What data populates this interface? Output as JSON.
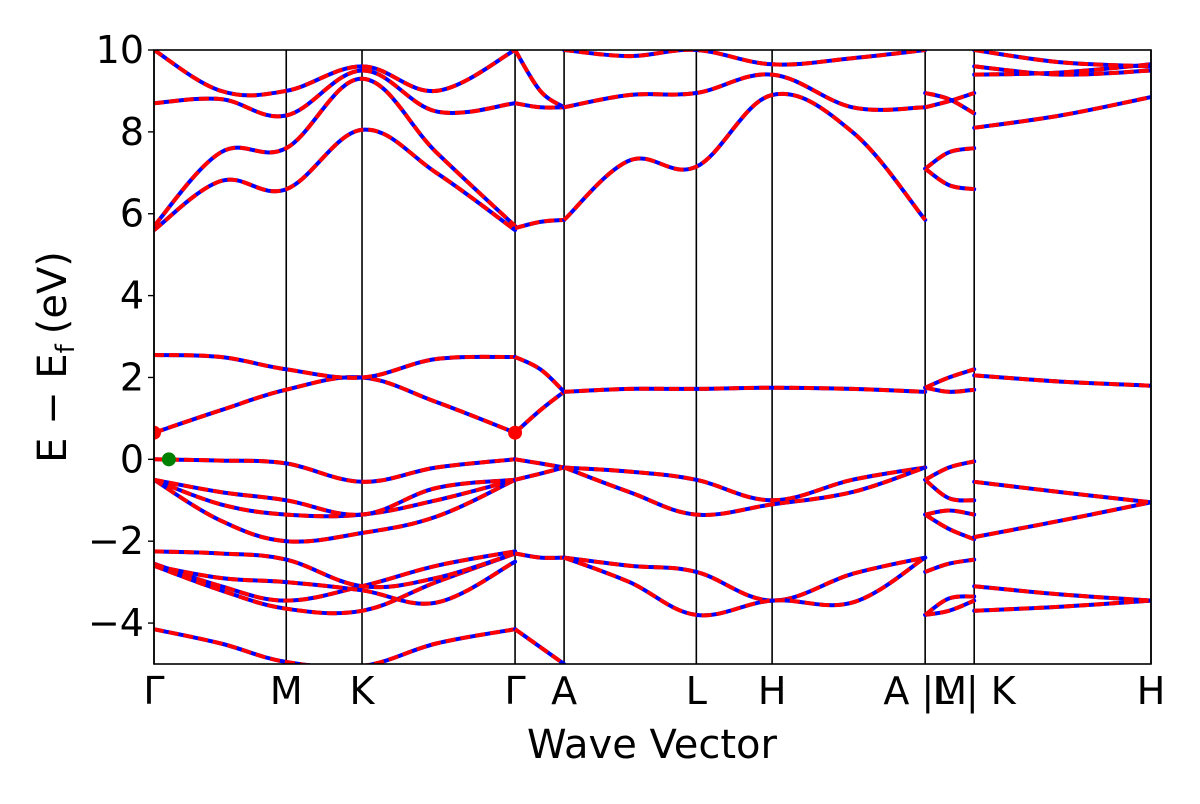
{
  "chart_data": {
    "type": "line",
    "title": "",
    "xlabel": "Wave Vector",
    "ylabel": "E − E",
    "ylabel_sub": "f",
    "ylabel_unit": "(eV)",
    "ylim": [
      -5,
      10
    ],
    "yticks": [
      -4,
      -2,
      0,
      2,
      4,
      6,
      8,
      10
    ],
    "ytick_labels": [
      "−4",
      "−2",
      "0",
      "2",
      "4",
      "6",
      "8",
      "10"
    ],
    "xlim": [
      0,
      6.71
    ],
    "kpoints": [
      {
        "label": "Γ",
        "x": 0.0
      },
      {
        "label": "M",
        "x": 0.89
      },
      {
        "label": "K",
        "x": 1.4
      },
      {
        "label": "Γ",
        "x": 2.43
      },
      {
        "label": "A",
        "x": 2.76
      },
      {
        "label": "L",
        "x": 3.65
      },
      {
        "label": "H",
        "x": 4.16
      },
      {
        "label": "A |M",
        "x": 5.19
      },
      {
        "label": "L | K",
        "x": 5.52
      },
      {
        "label": "H",
        "x": 6.71
      }
    ],
    "colors": {
      "solid": "#0000ff",
      "dashed": "#ff0000",
      "vbm": "#008000",
      "cbm": "#ff0000",
      "kline": "#000000"
    },
    "bands": [
      {
        "name": "",
        "x": [
          0,
          0.45,
          0.89,
          1.4,
          1.9,
          2.43
        ],
        "y": [
          -4.15,
          -4.5,
          -4.95,
          -5.05,
          -4.5,
          -4.15
        ]
      },
      {
        "name": "",
        "x": [
          2.43,
          2.76
        ],
        "y": [
          -4.15,
          -5.0
        ]
      },
      {
        "name": "",
        "x": [
          0,
          0.45,
          0.89,
          1.4,
          1.9,
          2.43
        ],
        "y": [
          -2.55,
          -3.1,
          -3.45,
          -3.1,
          -2.6,
          -2.25
        ]
      },
      {
        "name": "",
        "x": [
          0,
          0.45,
          0.89,
          1.4,
          1.9,
          2.43
        ],
        "y": [
          -2.6,
          -3.2,
          -3.65,
          -3.7,
          -3.0,
          -2.3
        ]
      },
      {
        "name": "",
        "x": [
          0,
          0.45,
          0.89,
          1.4,
          1.9,
          2.43
        ],
        "y": [
          -2.25,
          -2.3,
          -2.45,
          -3.1,
          -2.9,
          -2.3
        ]
      },
      {
        "name": "",
        "x": [
          0,
          0.45,
          0.89,
          1.4,
          1.9,
          2.43
        ],
        "y": [
          -2.6,
          -2.9,
          -3.0,
          -3.2,
          -3.5,
          -2.5
        ]
      },
      {
        "name": "",
        "x": [
          0,
          0.45,
          0.89,
          1.4,
          1.9,
          2.43
        ],
        "y": [
          -0.5,
          -1.5,
          -2.0,
          -1.8,
          -1.4,
          -0.5
        ]
      },
      {
        "name": "",
        "x": [
          0,
          0.45,
          0.89,
          1.4,
          1.9,
          2.43
        ],
        "y": [
          -0.5,
          -1.1,
          -1.35,
          -1.35,
          -1.0,
          -0.5
        ]
      },
      {
        "name": "",
        "x": [
          0,
          0.45,
          0.89,
          1.4,
          1.9,
          2.43
        ],
        "y": [
          -0.5,
          -0.8,
          -1.0,
          -1.35,
          -0.7,
          -0.5
        ]
      },
      {
        "name": "",
        "x": [
          0,
          0.45,
          0.89,
          1.4,
          1.9,
          2.43
        ],
        "y": [
          0.0,
          -0.03,
          -0.1,
          -0.55,
          -0.2,
          0.0
        ]
      },
      {
        "name": "",
        "x": [
          0,
          0.45,
          0.89,
          1.4,
          1.9,
          2.43
        ],
        "y": [
          0.65,
          1.2,
          1.7,
          2.0,
          1.4,
          0.65
        ]
      },
      {
        "name": "",
        "x": [
          0,
          0.45,
          0.89,
          1.4,
          1.9,
          2.43
        ],
        "y": [
          2.55,
          2.5,
          2.2,
          2.0,
          2.45,
          2.5
        ]
      },
      {
        "name": "",
        "x": [
          0,
          0.45,
          0.89,
          1.4,
          1.9,
          2.43
        ],
        "y": [
          5.6,
          6.8,
          6.6,
          8.05,
          7.0,
          5.6
        ]
      },
      {
        "name": "",
        "x": [
          0,
          0.45,
          0.89,
          1.4,
          1.9,
          2.43
        ],
        "y": [
          5.7,
          7.5,
          7.6,
          9.3,
          7.5,
          5.7
        ]
      },
      {
        "name": "",
        "x": [
          0,
          0.45,
          0.89,
          1.4,
          1.9,
          2.43
        ],
        "y": [
          8.7,
          8.8,
          8.4,
          9.5,
          8.5,
          8.7
        ]
      },
      {
        "name": "",
        "x": [
          0,
          0.45,
          0.89,
          1.4,
          1.9,
          2.43
        ],
        "y": [
          10.0,
          9.0,
          9.0,
          9.6,
          9.0,
          10.0
        ]
      },
      {
        "name": "",
        "x": [
          2.43,
          2.6,
          2.76
        ],
        "y": [
          -2.3,
          -2.4,
          -2.4
        ]
      },
      {
        "name": "",
        "x": [
          2.43,
          2.6,
          2.76
        ],
        "y": [
          0.0,
          -0.1,
          -0.2
        ]
      },
      {
        "name": "",
        "x": [
          2.43,
          2.6,
          2.76
        ],
        "y": [
          -0.5,
          -0.35,
          -0.2
        ]
      },
      {
        "name": "",
        "x": [
          2.43,
          2.6,
          2.76
        ],
        "y": [
          0.65,
          1.2,
          1.65
        ]
      },
      {
        "name": "",
        "x": [
          2.43,
          2.6,
          2.76
        ],
        "y": [
          2.5,
          2.2,
          1.65
        ]
      },
      {
        "name": "",
        "x": [
          2.43,
          2.6,
          2.76
        ],
        "y": [
          5.65,
          5.8,
          5.85
        ]
      },
      {
        "name": "",
        "x": [
          2.43,
          2.6,
          2.76
        ],
        "y": [
          8.7,
          8.6,
          8.6
        ]
      },
      {
        "name": "",
        "x": [
          2.43,
          2.6,
          2.76
        ],
        "y": [
          10.0,
          9.0,
          8.6
        ]
      },
      {
        "name": "",
        "x": [
          2.76,
          3.2,
          3.65,
          4.16,
          4.7,
          5.19
        ],
        "y": [
          -2.4,
          -2.6,
          -2.75,
          -3.45,
          -2.8,
          -2.4
        ]
      },
      {
        "name": "",
        "x": [
          2.76,
          3.2,
          3.65,
          4.16,
          4.7,
          5.19
        ],
        "y": [
          -2.4,
          -3.0,
          -3.8,
          -3.45,
          -3.5,
          -2.4
        ]
      },
      {
        "name": "",
        "x": [
          2.76,
          3.2,
          3.65,
          4.16,
          4.7,
          5.19
        ],
        "y": [
          -0.2,
          -0.3,
          -0.5,
          -1.0,
          -0.5,
          -0.2
        ]
      },
      {
        "name": "",
        "x": [
          2.76,
          3.2,
          3.65,
          4.16,
          4.7,
          5.19
        ],
        "y": [
          -0.2,
          -0.8,
          -1.35,
          -1.1,
          -0.8,
          -0.2
        ]
      },
      {
        "name": "",
        "x": [
          2.76,
          3.2,
          3.65,
          4.16,
          4.7,
          5.19
        ],
        "y": [
          1.65,
          1.72,
          1.72,
          1.75,
          1.72,
          1.65
        ]
      },
      {
        "name": "",
        "x": [
          2.76,
          3.2,
          3.65,
          4.16,
          4.7,
          5.19
        ],
        "y": [
          5.85,
          7.3,
          7.15,
          8.9,
          8.0,
          5.85
        ]
      },
      {
        "name": "",
        "x": [
          2.76,
          3.2,
          3.65,
          4.16,
          4.7,
          5.19
        ],
        "y": [
          8.6,
          8.9,
          8.95,
          9.4,
          8.6,
          8.6
        ]
      },
      {
        "name": "",
        "x": [
          2.76,
          3.2,
          3.65,
          4.16,
          4.7,
          5.19
        ],
        "y": [
          10.0,
          9.85,
          10.0,
          9.65,
          9.8,
          10.0
        ]
      },
      {
        "name": "",
        "x": [
          5.19,
          5.35,
          5.52
        ],
        "y": [
          -3.8,
          -3.7,
          -3.45
        ]
      },
      {
        "name": "",
        "x": [
          5.19,
          5.35,
          5.52
        ],
        "y": [
          -3.8,
          -3.4,
          -3.35
        ]
      },
      {
        "name": "",
        "x": [
          5.19,
          5.35,
          5.52
        ],
        "y": [
          -2.75,
          -2.55,
          -2.45
        ]
      },
      {
        "name": "",
        "x": [
          5.19,
          5.35,
          5.52
        ],
        "y": [
          -1.35,
          -1.7,
          -1.95
        ]
      },
      {
        "name": "",
        "x": [
          5.19,
          5.35,
          5.52
        ],
        "y": [
          -1.35,
          -1.25,
          -1.35
        ]
      },
      {
        "name": "",
        "x": [
          5.19,
          5.35,
          5.52
        ],
        "y": [
          -0.5,
          -0.95,
          -1.0
        ]
      },
      {
        "name": "",
        "x": [
          5.19,
          5.35,
          5.52
        ],
        "y": [
          -0.5,
          -0.2,
          -0.05
        ]
      },
      {
        "name": "",
        "x": [
          5.19,
          5.35,
          5.52
        ],
        "y": [
          1.75,
          1.65,
          1.7
        ]
      },
      {
        "name": "",
        "x": [
          5.19,
          5.35,
          5.52
        ],
        "y": [
          1.75,
          2.0,
          2.2
        ]
      },
      {
        "name": "",
        "x": [
          5.19,
          5.35,
          5.52
        ],
        "y": [
          7.1,
          7.5,
          7.6
        ]
      },
      {
        "name": "",
        "x": [
          5.19,
          5.35,
          5.52
        ],
        "y": [
          7.1,
          6.7,
          6.6
        ]
      },
      {
        "name": "",
        "x": [
          5.19,
          5.35,
          5.52
        ],
        "y": [
          8.95,
          8.8,
          8.45
        ]
      },
      {
        "name": "",
        "x": [
          5.19,
          5.35,
          5.52
        ],
        "y": [
          8.6,
          8.75,
          8.95
        ]
      },
      {
        "name": "",
        "x": [
          5.52,
          6.1,
          6.71
        ],
        "y": [
          -3.7,
          -3.6,
          -3.45
        ]
      },
      {
        "name": "",
        "x": [
          5.52,
          6.1,
          6.71
        ],
        "y": [
          -3.1,
          -3.3,
          -3.45
        ]
      },
      {
        "name": "",
        "x": [
          5.52,
          6.1,
          6.71
        ],
        "y": [
          -1.9,
          -1.5,
          -1.05
        ]
      },
      {
        "name": "",
        "x": [
          5.52,
          6.1,
          6.71
        ],
        "y": [
          -0.55,
          -0.8,
          -1.05
        ]
      },
      {
        "name": "",
        "x": [
          5.52,
          6.1,
          6.71
        ],
        "y": [
          2.05,
          1.9,
          1.8
        ]
      },
      {
        "name": "",
        "x": [
          5.52,
          6.1,
          6.71
        ],
        "y": [
          8.1,
          8.4,
          8.85
        ]
      },
      {
        "name": "",
        "x": [
          5.52,
          6.1,
          6.71
        ],
        "y": [
          9.6,
          9.4,
          9.5
        ]
      },
      {
        "name": "",
        "x": [
          5.52,
          6.1,
          6.71
        ],
        "y": [
          9.4,
          9.45,
          9.65
        ]
      },
      {
        "name": "",
        "x": [
          5.52,
          6.1,
          6.71
        ],
        "y": [
          10.0,
          9.7,
          9.6
        ]
      }
    ],
    "markers": [
      {
        "name": "vbm",
        "x": 0.1,
        "y": 0.0,
        "color": "#008000"
      },
      {
        "name": "cbm",
        "x": 0.0,
        "y": 0.65,
        "color": "#ff0000"
      },
      {
        "name": "cbm",
        "x": 2.43,
        "y": 0.65,
        "color": "#ff0000"
      }
    ]
  }
}
